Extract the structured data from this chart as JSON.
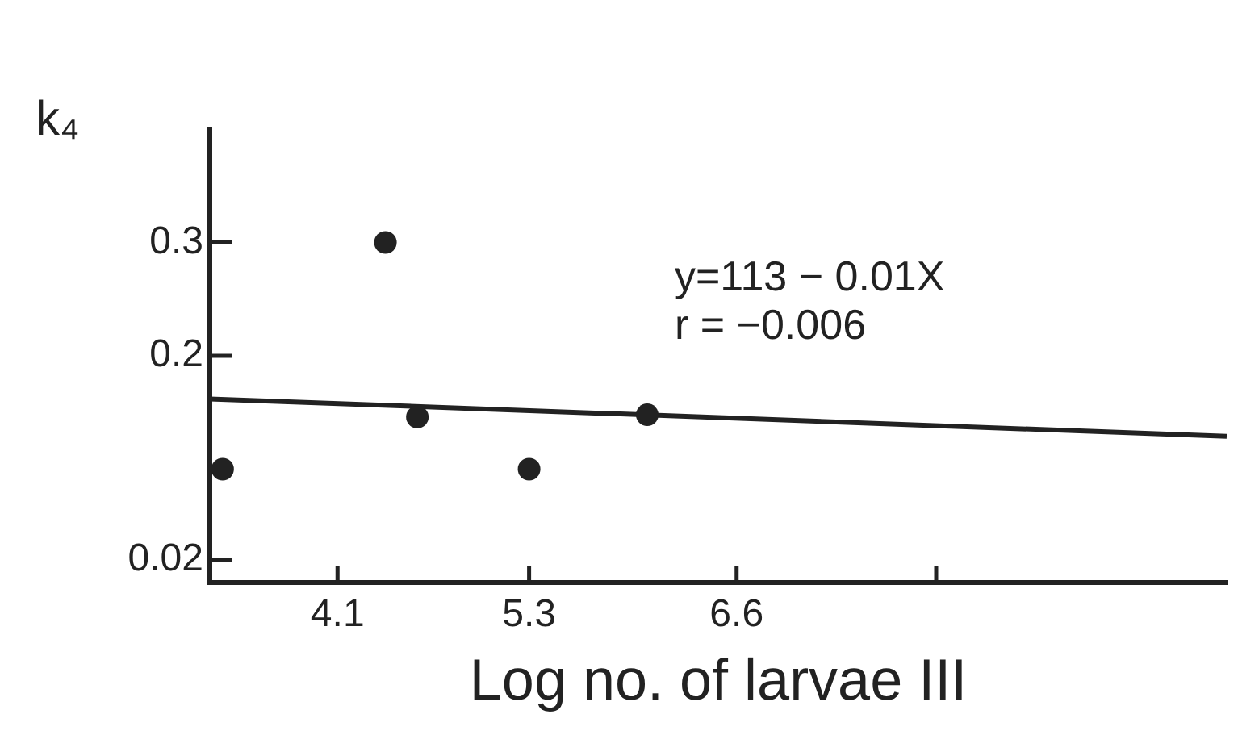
{
  "chart_data": {
    "type": "scatter",
    "ylabel": "k₄",
    "xlabel": "Log no. of larvae III",
    "xlim": [
      3.3,
      9.67
    ],
    "ylim": [
      0,
      0.4
    ],
    "xticks": [
      4.1,
      5.3,
      6.6,
      {
        "value": 7.85,
        "label": null
      }
    ],
    "yticks": [
      0.02,
      0.2,
      0.3
    ],
    "grid": false,
    "legend": false,
    "marker": "circle",
    "series": [
      {
        "color": "#222222",
        "x": [
          3.38,
          4.4,
          4.6,
          5.3,
          6.04
        ],
        "values": [
          0.1,
          0.3,
          0.146,
          0.1,
          0.148
        ]
      },
      {
        "type": "line",
        "color": "#222222",
        "line_style": "solid",
        "marker": "none",
        "x": [
          3.3,
          9.67
        ],
        "values": [
          0.162,
          0.129
        ]
      }
    ],
    "annotations": [
      "y=113 − 0.01X\nr = −0.006"
    ]
  }
}
